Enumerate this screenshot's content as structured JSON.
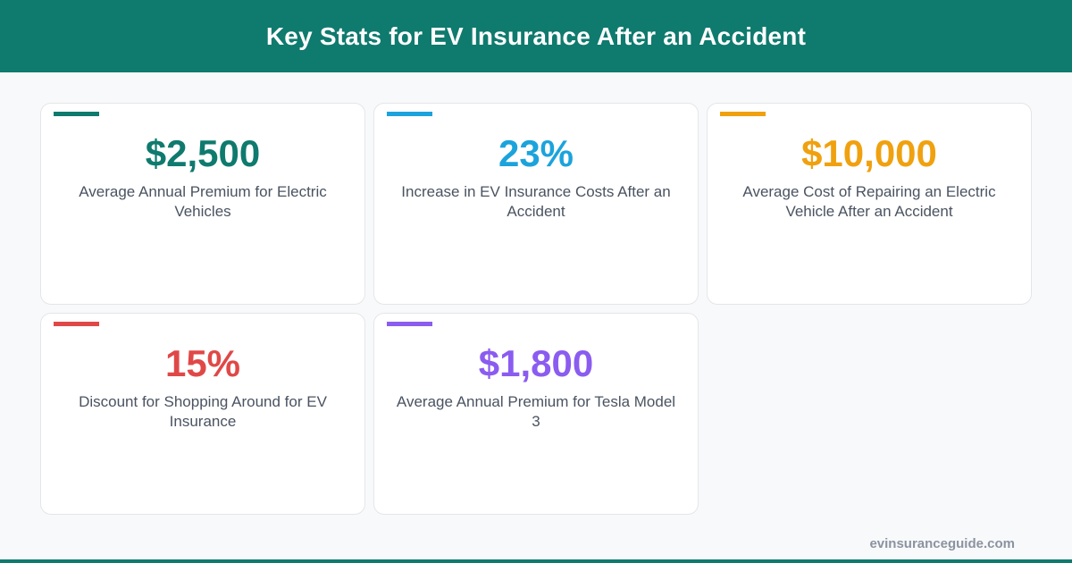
{
  "header": {
    "title": "Key Stats for EV Insurance After an Accident"
  },
  "stats": [
    {
      "value": "$2,500",
      "label": "Average Annual Premium for Electric Vehicles",
      "color": "#0f7a6e"
    },
    {
      "value": "23%",
      "label": "Increase in EV Insurance Costs After an Accident",
      "color": "#1ca3dc"
    },
    {
      "value": "$10,000",
      "label": "Average Cost of Repairing an Electric Vehicle After an Accident",
      "color": "#f0a10f"
    },
    {
      "value": "15%",
      "label": "Discount for Shopping Around for EV Insurance",
      "color": "#e04848"
    },
    {
      "value": "$1,800",
      "label": "Average Annual Premium for Tesla Model 3",
      "color": "#8b5cf0"
    }
  ],
  "footer": {
    "site": "evinsuranceguide.com"
  }
}
